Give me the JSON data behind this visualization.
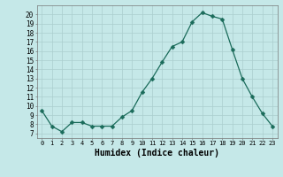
{
  "x": [
    0,
    1,
    2,
    3,
    4,
    5,
    6,
    7,
    8,
    9,
    10,
    11,
    12,
    13,
    14,
    15,
    16,
    17,
    18,
    19,
    20,
    21,
    22,
    23
  ],
  "y": [
    9.5,
    7.8,
    7.2,
    8.2,
    8.2,
    7.8,
    7.8,
    7.8,
    8.8,
    9.5,
    11.5,
    13.0,
    14.8,
    16.5,
    17.0,
    19.2,
    20.2,
    19.8,
    19.5,
    16.2,
    13.0,
    11.0,
    9.2,
    7.8
  ],
  "line_color": "#1a6b5a",
  "marker": "D",
  "markersize": 2.5,
  "bg_color": "#c5e8e8",
  "grid_color": "#aacece",
  "xlabel": "Humidex (Indice chaleur)",
  "xlabel_fontsize": 7,
  "ytick_labels": [
    "7",
    "8",
    "9",
    "10",
    "11",
    "12",
    "13",
    "14",
    "15",
    "16",
    "17",
    "18",
    "19",
    "20"
  ],
  "xtick_labels": [
    "0",
    "1",
    "2",
    "3",
    "4",
    "5",
    "6",
    "7",
    "8",
    "9",
    "10",
    "11",
    "12",
    "13",
    "14",
    "15",
    "16",
    "17",
    "18",
    "19",
    "20",
    "21",
    "22",
    "23"
  ],
  "ylim": [
    6.5,
    21.0
  ],
  "xlim": [
    -0.5,
    23.5
  ]
}
